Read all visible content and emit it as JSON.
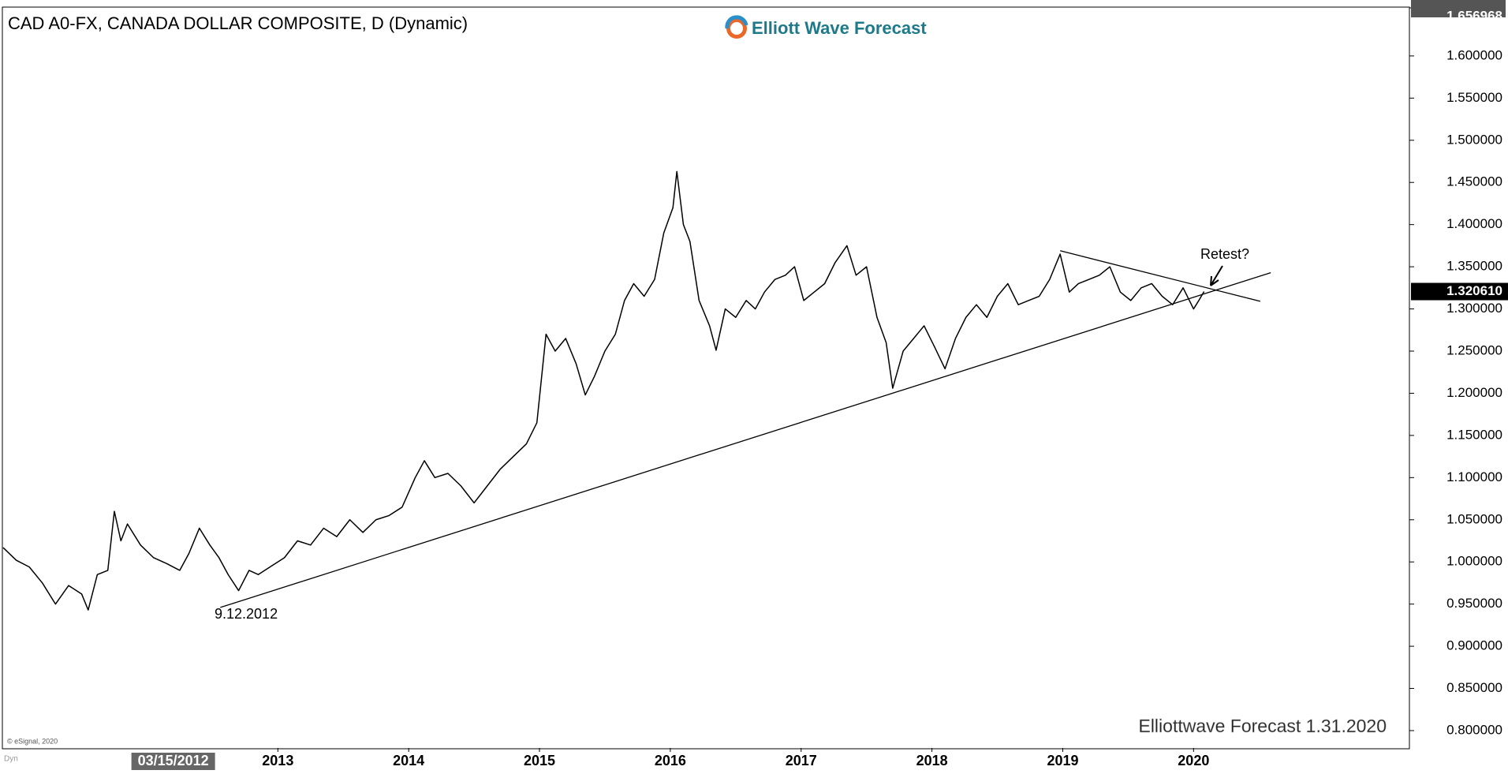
{
  "chart_data": {
    "type": "line",
    "title": "CAD A0-FX, CANADA DOLLAR COMPOSITE, D (Dynamic)",
    "logo": "Elliott Wave Forecast",
    "footer": "Elliottwave Forecast 1.31.2020",
    "source": "© eSignal, 2020",
    "mode_label": "Dyn",
    "annotations": [
      "9.12.2012",
      "Retest?"
    ],
    "x": [
      2010.9,
      2011.0,
      2011.1,
      2011.2,
      2011.3,
      2011.4,
      2011.5,
      2011.55,
      2011.62,
      2011.7,
      2011.75,
      2011.8,
      2011.85,
      2011.95,
      2012.05,
      2012.15,
      2012.25,
      2012.32,
      2012.4,
      2012.48,
      2012.55,
      2012.62,
      2012.7,
      2012.78,
      2012.85,
      2012.95,
      2013.05,
      2013.15,
      2013.25,
      2013.35,
      2013.45,
      2013.55,
      2013.65,
      2013.75,
      2013.85,
      2013.95,
      2014.05,
      2014.12,
      2014.2,
      2014.3,
      2014.4,
      2014.5,
      2014.6,
      2014.7,
      2014.8,
      2014.9,
      2014.98,
      2015.05,
      2015.12,
      2015.2,
      2015.28,
      2015.35,
      2015.42,
      2015.5,
      2015.58,
      2015.65,
      2015.72,
      2015.8,
      2015.88,
      2015.95,
      2016.02,
      2016.05,
      2016.1,
      2016.15,
      2016.22,
      2016.3,
      2016.35,
      2016.42,
      2016.5,
      2016.58,
      2016.65,
      2016.72,
      2016.8,
      2016.88,
      2016.95,
      2017.02,
      2017.1,
      2017.18,
      2017.26,
      2017.35,
      2017.42,
      2017.5,
      2017.58,
      2017.65,
      2017.7,
      2017.78,
      2017.86,
      2017.94,
      2018.02,
      2018.1,
      2018.18,
      2018.26,
      2018.34,
      2018.42,
      2018.5,
      2018.58,
      2018.66,
      2018.74,
      2018.82,
      2018.9,
      2018.98,
      2019.05,
      2019.12,
      2019.2,
      2019.28,
      2019.36,
      2019.44,
      2019.52,
      2019.6,
      2019.68,
      2019.76,
      2019.84,
      2019.92,
      2020.0,
      2020.04,
      2020.08
    ],
    "series": [
      {
        "name": "CAD",
        "color": "#000000",
        "values": [
          1.017,
          1.002,
          0.994,
          0.975,
          0.95,
          0.972,
          0.962,
          0.943,
          0.985,
          0.99,
          1.06,
          1.025,
          1.045,
          1.02,
          1.005,
          0.998,
          0.99,
          1.01,
          1.04,
          1.02,
          1.005,
          0.985,
          0.966,
          0.99,
          0.985,
          0.995,
          1.005,
          1.025,
          1.02,
          1.04,
          1.03,
          1.05,
          1.035,
          1.05,
          1.055,
          1.065,
          1.1,
          1.12,
          1.1,
          1.105,
          1.09,
          1.07,
          1.09,
          1.11,
          1.125,
          1.14,
          1.165,
          1.27,
          1.25,
          1.265,
          1.235,
          1.198,
          1.22,
          1.25,
          1.27,
          1.31,
          1.33,
          1.315,
          1.335,
          1.39,
          1.42,
          1.463,
          1.4,
          1.38,
          1.31,
          1.28,
          1.251,
          1.3,
          1.29,
          1.31,
          1.3,
          1.32,
          1.335,
          1.34,
          1.35,
          1.31,
          1.32,
          1.33,
          1.355,
          1.375,
          1.34,
          1.35,
          1.29,
          1.26,
          1.206,
          1.25,
          1.265,
          1.28,
          1.255,
          1.229,
          1.265,
          1.29,
          1.305,
          1.29,
          1.315,
          1.33,
          1.305,
          1.31,
          1.315,
          1.335,
          1.365,
          1.32,
          1.33,
          1.335,
          1.34,
          1.35,
          1.32,
          1.31,
          1.325,
          1.33,
          1.315,
          1.305,
          1.325,
          1.3,
          1.31,
          1.32061
        ]
      }
    ],
    "trendlines": [
      {
        "x": [
          2012.56,
          2020.59
        ],
        "y": [
          0.946,
          1.343
        ]
      },
      {
        "x": [
          2018.98,
          2020.51
        ],
        "y": [
          1.369,
          1.309
        ]
      }
    ],
    "last_price": {
      "value": 1.32061,
      "label": "1.320610"
    },
    "cursor_x": {
      "value": 2012.2,
      "label": "03/15/2012"
    },
    "xlim": [
      2010.9,
      2021.65
    ],
    "ylim": [
      0.7794,
      1.656968
    ],
    "xticks": [
      2013,
      2014,
      2015,
      2016,
      2017,
      2018,
      2019,
      2020
    ],
    "yticks": [
      {
        "value": 0.8,
        "label": "0.800000"
      },
      {
        "value": 0.85,
        "label": "0.850000"
      },
      {
        "value": 0.9,
        "label": "0.900000"
      },
      {
        "value": 0.95,
        "label": "0.950000"
      },
      {
        "value": 1.0,
        "label": "1.000000"
      },
      {
        "value": 1.05,
        "label": "1.050000"
      },
      {
        "value": 1.1,
        "label": "1.100000"
      },
      {
        "value": 1.15,
        "label": "1.150000"
      },
      {
        "value": 1.2,
        "label": "1.200000"
      },
      {
        "value": 1.25,
        "label": "1.250000"
      },
      {
        "value": 1.3,
        "label": "1.300000"
      },
      {
        "value": 1.35,
        "label": "1.350000"
      },
      {
        "value": 1.4,
        "label": "1.400000"
      },
      {
        "value": 1.45,
        "label": "1.450000"
      },
      {
        "value": 1.5,
        "label": "1.500000"
      },
      {
        "value": 1.55,
        "label": "1.550000"
      },
      {
        "value": 1.6,
        "label": "1.600000"
      },
      {
        "value": 1.656968,
        "label": "1.656968"
      }
    ]
  }
}
